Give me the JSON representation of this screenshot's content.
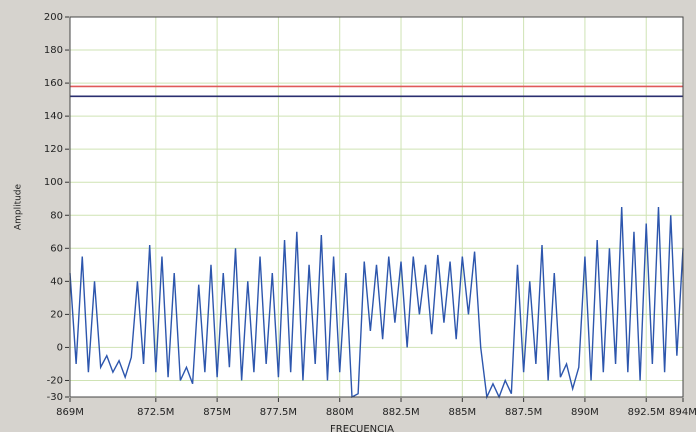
{
  "chart_data": {
    "type": "line",
    "xlabel": "FRECUENCIA",
    "ylabel": "Amplitude",
    "xlim": [
      869,
      894
    ],
    "ylim": [
      -30,
      200
    ],
    "xticks": [
      {
        "value": 869,
        "label": "869M"
      },
      {
        "value": 872.5,
        "label": "872.5M"
      },
      {
        "value": 875,
        "label": "875M"
      },
      {
        "value": 877.5,
        "label": "877.5M"
      },
      {
        "value": 880,
        "label": "880M"
      },
      {
        "value": 882.5,
        "label": "882.5M"
      },
      {
        "value": 885,
        "label": "885M"
      },
      {
        "value": 887.5,
        "label": "887.5M"
      },
      {
        "value": 890,
        "label": "890M"
      },
      {
        "value": 892.5,
        "label": "892.5M"
      },
      {
        "value": 894,
        "label": "894M"
      }
    ],
    "yticks": [
      -30,
      -20,
      0,
      20,
      40,
      60,
      80,
      100,
      120,
      140,
      160,
      180,
      200
    ],
    "grid": true,
    "series": [
      {
        "color": "#2d56ad",
        "x": [
          869,
          869.25,
          869.5,
          869.75,
          870,
          870.25,
          870.5,
          870.75,
          871,
          871.25,
          871.5,
          871.75,
          872,
          872.25,
          872.5,
          872.75,
          873,
          873.25,
          873.5,
          873.75,
          874,
          874.25,
          874.5,
          874.75,
          875,
          875.25,
          875.5,
          875.75,
          876,
          876.25,
          876.5,
          876.75,
          877,
          877.25,
          877.5,
          877.75,
          878,
          878.25,
          878.5,
          878.75,
          879,
          879.25,
          879.5,
          879.75,
          880,
          880.25,
          880.5,
          880.75,
          881,
          881.25,
          881.5,
          881.75,
          882,
          882.25,
          882.5,
          882.75,
          883,
          883.25,
          883.5,
          883.75,
          884,
          884.25,
          884.5,
          884.75,
          885,
          885.25,
          885.5,
          885.75,
          886,
          886.25,
          886.5,
          886.75,
          887,
          887.25,
          887.5,
          887.75,
          888,
          888.25,
          888.5,
          888.75,
          889,
          889.25,
          889.5,
          889.75,
          890,
          890.25,
          890.5,
          890.75,
          891,
          891.25,
          891.5,
          891.75,
          892,
          892.25,
          892.5,
          892.75,
          893,
          893.25,
          893.5,
          893.75,
          894
        ],
        "values": [
          45,
          -10,
          55,
          -15,
          40,
          -12,
          -5,
          -15,
          -8,
          -18,
          -6,
          40,
          -10,
          62,
          -15,
          55,
          -18,
          45,
          -20,
          -12,
          -22,
          38,
          -15,
          50,
          -18,
          45,
          -12,
          60,
          -20,
          40,
          -15,
          55,
          -10,
          45,
          -18,
          65,
          -15,
          70,
          -20,
          50,
          -10,
          68,
          -20,
          55,
          -15,
          45,
          -30,
          -28,
          52,
          10,
          50,
          5,
          55,
          15,
          52,
          0,
          55,
          20,
          50,
          8,
          56,
          15,
          52,
          5,
          55,
          20,
          58,
          0,
          -30,
          -22,
          -30,
          -20,
          -28,
          50,
          -15,
          40,
          -10,
          62,
          -20,
          45,
          -18,
          -10,
          -25,
          -12,
          55,
          -20,
          65,
          -15,
          60,
          -10,
          85,
          -15,
          70,
          -20,
          75,
          -10,
          85,
          -15,
          80,
          -5,
          60
        ]
      },
      {
        "color": "#e05a5a",
        "x": [
          869,
          894
        ],
        "values": [
          158,
          158
        ]
      },
      {
        "color": "#2a2f70",
        "x": [
          869,
          894
        ],
        "values": [
          152,
          152
        ]
      }
    ]
  }
}
